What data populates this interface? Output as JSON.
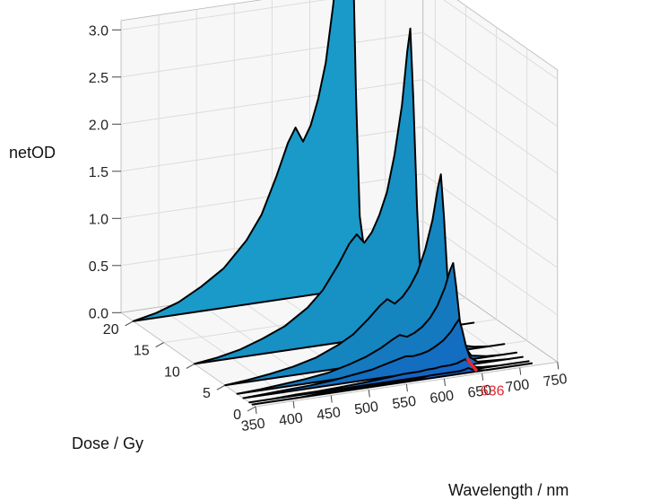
{
  "chart_data": {
    "type": "area",
    "zlabel": "netOD",
    "ylabel": "Dose / Gy",
    "xlabel": "Wavelength / nm",
    "x_ticks": [
      "350",
      "400",
      "450",
      "500",
      "550",
      "600",
      "650",
      "700",
      "750"
    ],
    "y_ticks": [
      "0",
      "5",
      "10",
      "15",
      "20"
    ],
    "z_ticks": [
      "0.0",
      "0.5",
      "1.0",
      "1.5",
      "2.0",
      "2.5",
      "3.0"
    ],
    "xlim": [
      350,
      750
    ],
    "ylim": [
      0,
      22
    ],
    "zlim": [
      0,
      3.0
    ],
    "grid": true,
    "annotation": {
      "text": "636",
      "x": 636,
      "color": "#e8272f"
    },
    "x": [
      350,
      380,
      410,
      440,
      470,
      500,
      520,
      540,
      555,
      565,
      575,
      585,
      595,
      605,
      615,
      625,
      632,
      636,
      640,
      645,
      650,
      660,
      680,
      700,
      720
    ],
    "series": [
      {
        "dose": 0.5,
        "values": [
          0.0,
          0.0,
          0.0,
          0.01,
          0.01,
          0.01,
          0.01,
          0.02,
          0.02,
          0.02,
          0.02,
          0.03,
          0.03,
          0.03,
          0.03,
          0.03,
          0.04,
          0.05,
          0.03,
          0.02,
          0.01,
          0.0,
          0.0,
          0.0,
          0.0
        ]
      },
      {
        "dose": 1,
        "values": [
          0.0,
          0.0,
          0.01,
          0.01,
          0.02,
          0.03,
          0.04,
          0.05,
          0.06,
          0.06,
          0.06,
          0.07,
          0.07,
          0.08,
          0.08,
          0.09,
          0.11,
          0.12,
          0.09,
          0.05,
          0.02,
          0.01,
          0.0,
          0.0,
          0.0
        ]
      },
      {
        "dose": 2,
        "values": [
          0.0,
          0.01,
          0.02,
          0.03,
          0.05,
          0.08,
          0.1,
          0.14,
          0.17,
          0.19,
          0.18,
          0.19,
          0.21,
          0.25,
          0.3,
          0.38,
          0.46,
          0.5,
          0.38,
          0.2,
          0.08,
          0.02,
          0.01,
          0.0,
          0.0
        ]
      },
      {
        "dose": 3,
        "values": [
          0.0,
          0.01,
          0.03,
          0.05,
          0.08,
          0.14,
          0.19,
          0.26,
          0.33,
          0.37,
          0.34,
          0.37,
          0.42,
          0.5,
          0.62,
          0.8,
          0.98,
          1.05,
          0.8,
          0.42,
          0.16,
          0.04,
          0.01,
          0.0,
          0.0
        ]
      },
      {
        "dose": 5,
        "values": [
          0.0,
          0.02,
          0.05,
          0.09,
          0.15,
          0.25,
          0.34,
          0.48,
          0.6,
          0.66,
          0.6,
          0.66,
          0.76,
          0.9,
          1.12,
          1.43,
          1.76,
          1.9,
          1.45,
          0.76,
          0.28,
          0.06,
          0.02,
          0.0,
          0.0
        ]
      },
      {
        "dose": 10,
        "values": [
          0.0,
          0.03,
          0.08,
          0.16,
          0.26,
          0.42,
          0.58,
          0.82,
          1.03,
          1.12,
          1.02,
          1.12,
          1.29,
          1.52,
          1.9,
          2.42,
          2.98,
          3.22,
          2.46,
          1.29,
          0.48,
          0.1,
          0.03,
          0.0,
          0.0
        ]
      },
      {
        "dose": 20,
        "values": [
          0.0,
          0.05,
          0.13,
          0.26,
          0.42,
          0.68,
          0.93,
          1.32,
          1.65,
          1.8,
          1.64,
          1.8,
          2.07,
          2.44,
          3.05,
          3.88,
          4.78,
          5.16,
          3.94,
          2.07,
          0.76,
          0.16,
          0.05,
          0.0,
          0.0
        ]
      }
    ]
  }
}
